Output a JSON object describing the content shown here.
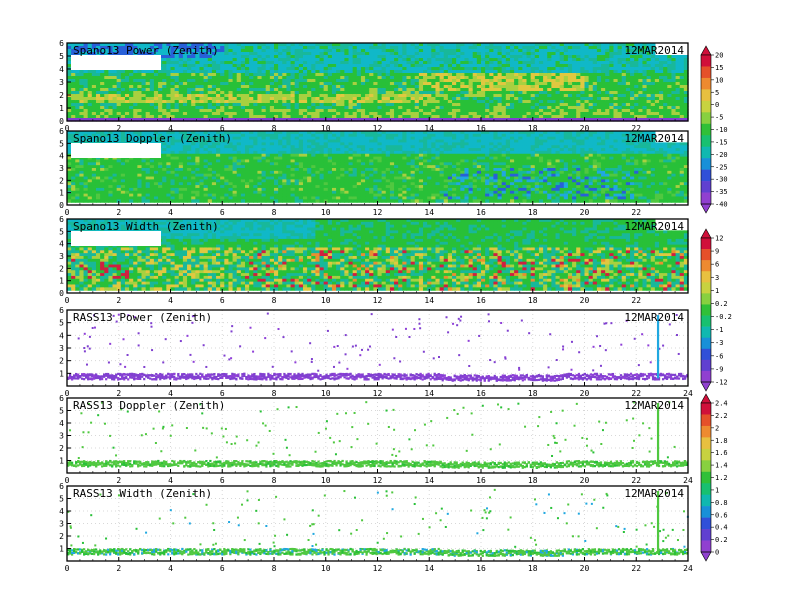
{
  "chart_data": [
    {
      "type": "heatmap",
      "title": "Spano13 Power (Zenith)",
      "date": "12MAR2014",
      "xlim": [
        0,
        24
      ],
      "ylim": [
        0,
        6
      ],
      "x_ticks": [
        "0",
        "2",
        "4",
        "6",
        "8",
        "10",
        "12",
        "14",
        "16",
        "18",
        "20",
        "22"
      ],
      "y_ticks": [
        "0",
        "1",
        "2",
        "3",
        "4",
        "5",
        "6"
      ],
      "colorbar": "power",
      "pattern": "spano_power"
    },
    {
      "type": "heatmap",
      "title": "Spano13 Doppler (Zenith)",
      "date": "12MAR2014",
      "xlim": [
        0,
        24
      ],
      "ylim": [
        0,
        6
      ],
      "x_ticks": [
        "0",
        "2",
        "4",
        "6",
        "8",
        "10",
        "12",
        "14",
        "16",
        "18",
        "20",
        "22"
      ],
      "y_ticks": [
        "0",
        "1",
        "2",
        "3",
        "4",
        "5",
        "6"
      ],
      "pattern": "spano_doppler"
    },
    {
      "type": "heatmap",
      "title": "Spano13 Width (Zenith)",
      "date": "12MAR2014",
      "xlim": [
        0,
        24
      ],
      "ylim": [
        0,
        6
      ],
      "x_ticks": [
        "0",
        "2",
        "4",
        "6",
        "8",
        "10",
        "12",
        "14",
        "16",
        "18",
        "20",
        "22"
      ],
      "y_ticks": [
        "0",
        "1",
        "2",
        "3",
        "4",
        "5",
        "6"
      ],
      "colorbar": "width_doppler",
      "pattern": "spano_width"
    },
    {
      "type": "heatmap",
      "title": "RASS13 Power (Zenith)",
      "date": "12MAR2014",
      "xlim": [
        0,
        24
      ],
      "ylim": [
        0,
        6
      ],
      "x_ticks": [
        "0",
        "2",
        "4",
        "6",
        "8",
        "10",
        "12",
        "14",
        "16",
        "18",
        "20",
        "22",
        "24"
      ],
      "y_ticks": [
        "1",
        "2",
        "3",
        "4",
        "5",
        "6"
      ],
      "colorbar": "rass_power",
      "pattern": "rass_power"
    },
    {
      "type": "heatmap",
      "title": "RASS13 Doppler (Zenith)",
      "date": "12MAR2014",
      "xlim": [
        0,
        24
      ],
      "ylim": [
        0,
        6
      ],
      "x_ticks": [
        "0",
        "2",
        "4",
        "6",
        "8",
        "10",
        "12",
        "14",
        "16",
        "18",
        "20",
        "22",
        "24"
      ],
      "y_ticks": [
        "1",
        "2",
        "3",
        "4",
        "5",
        "6"
      ],
      "pattern": "rass_doppler"
    },
    {
      "type": "heatmap",
      "title": "RASS13 Width (Zenith)",
      "date": "12MAR2014",
      "xlim": [
        0,
        24
      ],
      "ylim": [
        0,
        6
      ],
      "x_ticks": [
        "0",
        "2",
        "4",
        "6",
        "8",
        "10",
        "12",
        "14",
        "16",
        "18",
        "20",
        "22",
        "24"
      ],
      "y_ticks": [
        "1",
        "2",
        "3",
        "4",
        "5",
        "6"
      ],
      "colorbar": "rass_doppler_width",
      "pattern": "rass_width"
    }
  ],
  "colorbars": {
    "power": {
      "labels": [
        "20",
        "15",
        "10",
        "5",
        "0",
        "-5",
        "-10",
        "-15",
        "-20",
        "-25",
        "-30",
        "-35",
        "-40"
      ],
      "colors": [
        "#d0103a",
        "#e5502a",
        "#ee8a30",
        "#e8c040",
        "#c8d240",
        "#88d040",
        "#30c038",
        "#18c070",
        "#10b8b0",
        "#1890d8",
        "#3050d8",
        "#6040d0",
        "#9040d0"
      ]
    },
    "width_doppler": {
      "labels": [
        "12",
        "9",
        "6",
        "3",
        "1",
        "0.2",
        "-0.2",
        "-1",
        "-3",
        "-6",
        "-9",
        "-12"
      ],
      "colors": [
        "#d0103a",
        "#e5502a",
        "#ee8a30",
        "#e8c040",
        "#c8d240",
        "#88d040",
        "#30c038",
        "#18c070",
        "#10b8b0",
        "#1890d8",
        "#3050d8",
        "#6040d0",
        "#9040d0"
      ]
    },
    "rass_power": {
      "labels": [],
      "colors": [
        "#d0103a",
        "#e5502a",
        "#ee8a30",
        "#e8c040",
        "#c8d240",
        "#88d040",
        "#30c038",
        "#18c070",
        "#10b8b0",
        "#1890d8",
        "#3050d8",
        "#6040d0",
        "#9040d0"
      ]
    },
    "rass_doppler_width": {
      "labels": [
        "2.4",
        "2.2",
        "2",
        "1.8",
        "1.6",
        "1.4",
        "1.2",
        "1",
        "0.8",
        "0.6",
        "0.4",
        "0.2",
        "0"
      ],
      "colors": [
        "#d0103a",
        "#e5502a",
        "#ee8a30",
        "#e8c040",
        "#c8d240",
        "#88d040",
        "#30c038",
        "#18c070",
        "#10b8b0",
        "#1890d8",
        "#3050d8",
        "#6040d0",
        "#9040d0"
      ]
    }
  }
}
